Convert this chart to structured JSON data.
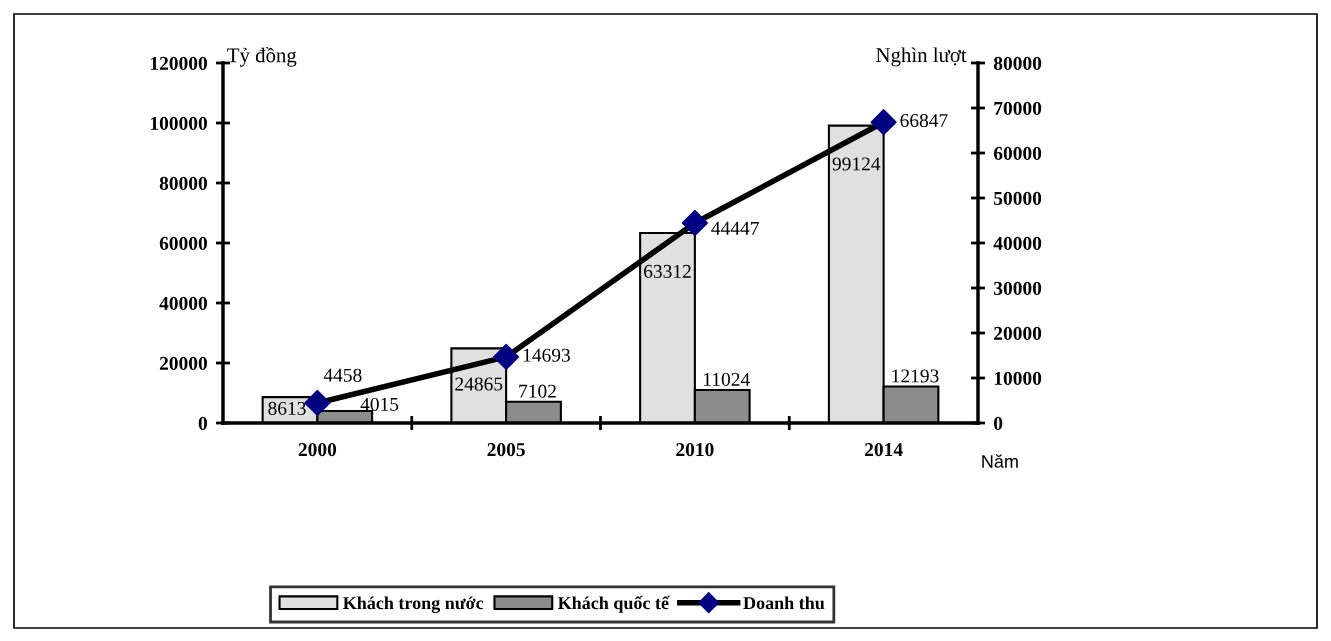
{
  "chart_data": {
    "type": "bar",
    "categories": [
      "2000",
      "2005",
      "2010",
      "2014"
    ],
    "series": [
      {
        "name": "Khách trong nước",
        "color": "#e0e0e0",
        "values": [
          8613,
          24865,
          63312,
          99124
        ]
      },
      {
        "name": "Khách quốc tế",
        "color": "#8c8c8c",
        "values": [
          4015,
          7102,
          11024,
          12193
        ]
      },
      {
        "name": "Doanh thu",
        "type": "line",
        "axis": "y2",
        "color": "#000000",
        "colors": [
          "#000080",
          "#000080",
          "#000080",
          "#000080"
        ],
        "values": [
          4458,
          14693,
          44447,
          66847
        ]
      }
    ],
    "ylabel": "Tỷ đồng",
    "y2label": "Nghìn lượt",
    "xlabel": "Năm",
    "ylim": [
      0,
      120000
    ],
    "yticks": [
      0,
      20000,
      40000,
      60000,
      80000,
      100000,
      120000
    ],
    "y2lim": [
      0,
      80000
    ],
    "y2ticks": [
      0,
      10000,
      20000,
      30000,
      40000,
      50000,
      60000,
      70000,
      80000
    ],
    "marker": "diamond",
    "data_labels": true,
    "legend": "bottom"
  }
}
